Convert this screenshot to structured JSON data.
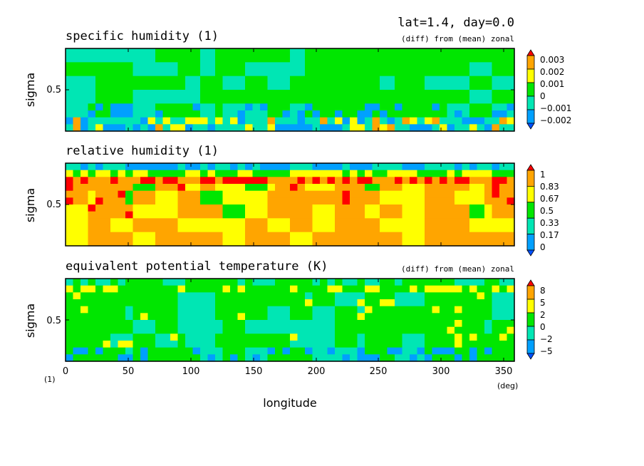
{
  "header": {
    "title": "lat=1.4, day=0.0"
  },
  "chart_data": [
    {
      "type": "heatmap",
      "title": "specific humidity (1)",
      "subtitle": "(diff) from (mean) zonal",
      "ylabel": "sigma",
      "yticks": [
        "0.5"
      ],
      "colorbar_labels": [
        "0.003",
        "0.002",
        "0.001",
        "0",
        "−0.001",
        "−0.002"
      ],
      "colors": [
        "#ff0000",
        "#ffa500",
        "#ffff00",
        "#00e600",
        "#00e6b4",
        "#00a0ff",
        "#0050ff"
      ]
    },
    {
      "type": "heatmap",
      "title": "relative humidity (1)",
      "subtitle": "",
      "ylabel": "sigma",
      "yticks": [
        "0.5"
      ],
      "colorbar_labels": [
        "1",
        "0.83",
        "0.67",
        "0.5",
        "0.33",
        "0.17",
        "0"
      ],
      "colors": [
        "#ff0000",
        "#ffa500",
        "#ffff00",
        "#00e600",
        "#00e6b4",
        "#00a0ff",
        "#0050ff"
      ]
    },
    {
      "type": "heatmap",
      "title": "equivalent potential temperature (K)",
      "subtitle": "(diff) from (mean) zonal",
      "ylabel": "sigma",
      "yticks": [
        "0.5"
      ],
      "colorbar_labels": [
        "8",
        "5",
        "2",
        "0",
        "−2",
        "−5"
      ],
      "colors": [
        "#ff0000",
        "#ffa500",
        "#ffff00",
        "#00e600",
        "#00e6b4",
        "#00a0ff",
        "#0050ff"
      ]
    }
  ],
  "xaxis": {
    "label": "longitude",
    "unit": "(deg)",
    "ticks": [
      "0",
      "50",
      "100",
      "150",
      "200",
      "250",
      "300",
      "350"
    ],
    "ytop_unit": "(1)"
  }
}
